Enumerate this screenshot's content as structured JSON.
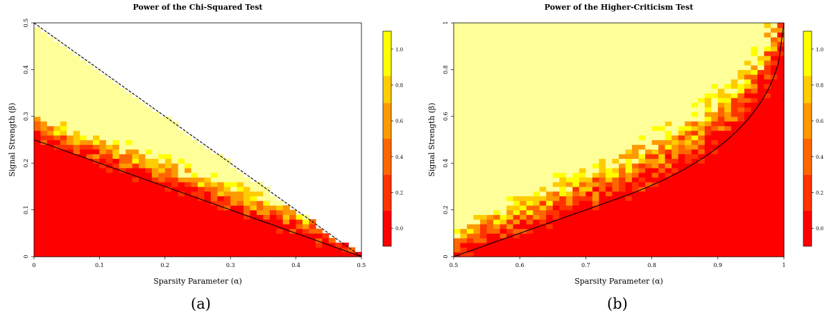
{
  "chart_data": [
    {
      "type": "heatmap",
      "title": "Power of the Chi-Squared Test",
      "xlabel": "Sparsity Parameter (α)",
      "ylabel": "Signal Strength (β)",
      "xlim": [
        0,
        0.5
      ],
      "ylim": [
        0,
        0.5
      ],
      "x_ticks": [
        "0",
        "0.1",
        "0.2",
        "0.3",
        "0.4",
        "0.5"
      ],
      "y_ticks": [
        "0",
        "0.1",
        "0.2",
        "0.3",
        "0.4",
        "0.5"
      ],
      "grid": {
        "nx": 50,
        "ny": 50
      },
      "power_rule": "cell shown only where beta < 0.5 - alpha; power rises from 0 near beta = 0.25 - alpha/2 to 1 near beta = 0.25 - alpha/2 + 0.05",
      "boundaries": [
        {
          "style": "dashed",
          "points": [
            [
              0,
              0.5
            ],
            [
              0.5,
              0
            ]
          ]
        },
        {
          "style": "solid",
          "points": [
            [
              0,
              0.25
            ],
            [
              0.5,
              0
            ]
          ]
        }
      ],
      "colorbar": {
        "ticks": [
          "0.0",
          "0.2",
          "0.4",
          "0.6",
          "0.8",
          "1.0"
        ],
        "range": [
          -0.1,
          1.1
        ]
      },
      "caption": "(a)"
    },
    {
      "type": "heatmap",
      "title": "Power of the Higher-Criticism Test",
      "xlabel": "Sparsity Parameter (α)",
      "ylabel": "Signal Strength (β)",
      "xlim": [
        0.5,
        1
      ],
      "ylim": [
        0,
        1
      ],
      "x_ticks": [
        "0.5",
        "0.6",
        "0.7",
        "0.8",
        "0.9",
        "1"
      ],
      "y_ticks": [
        "0",
        "0.2",
        "0.4",
        "0.6",
        "0.8",
        "1"
      ],
      "grid": {
        "nx": 50,
        "ny": 50
      },
      "power_rule": "power rises from 0 near the detection boundary to 1 about 0.1-0.25 above it",
      "boundaries": [
        {
          "style": "solid",
          "curve": "beta = (1 - sqrt(1 - alpha))^2 ... shown as rising curve from (0.5, 0) to (1, 1)"
        }
      ],
      "colorbar": {
        "ticks": [
          "0.0",
          "0.2",
          "0.4",
          "0.6",
          "0.8",
          "1.0"
        ],
        "range": [
          -0.1,
          1.1
        ]
      },
      "caption": "(b)"
    }
  ],
  "colorscale": [
    "#ff0000",
    "#ff3300",
    "#ff6600",
    "#ff9900",
    "#ffcc00",
    "#ffff00",
    "#ffff99"
  ]
}
